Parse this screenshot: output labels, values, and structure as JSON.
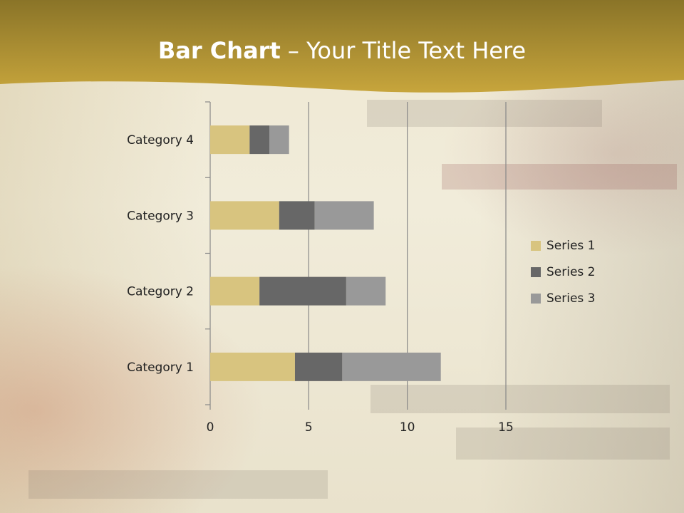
{
  "slide": {
    "title_bold": "Bar Chart",
    "title_rest": " – Your Title Text Here"
  },
  "colors": {
    "header": "#b89a32",
    "series1": "#d8c47f",
    "series2": "#676767",
    "series3": "#999999",
    "gridline": "#888888"
  },
  "chart_data": {
    "type": "bar",
    "orientation": "horizontal",
    "stacked": true,
    "categories": [
      "Category 1",
      "Category 2",
      "Category 3",
      "Category 4"
    ],
    "series": [
      {
        "name": "Series 1",
        "values": [
          4.3,
          2.5,
          3.5,
          2
        ]
      },
      {
        "name": "Series 2",
        "values": [
          2.4,
          4.4,
          1.8,
          1
        ]
      },
      {
        "name": "Series 3",
        "values": [
          5,
          2,
          3,
          1
        ]
      }
    ],
    "xlim": [
      0,
      15
    ],
    "xticks": [
      "0",
      "5",
      "10",
      "15"
    ],
    "grid": "vertical major",
    "legend": "right"
  }
}
